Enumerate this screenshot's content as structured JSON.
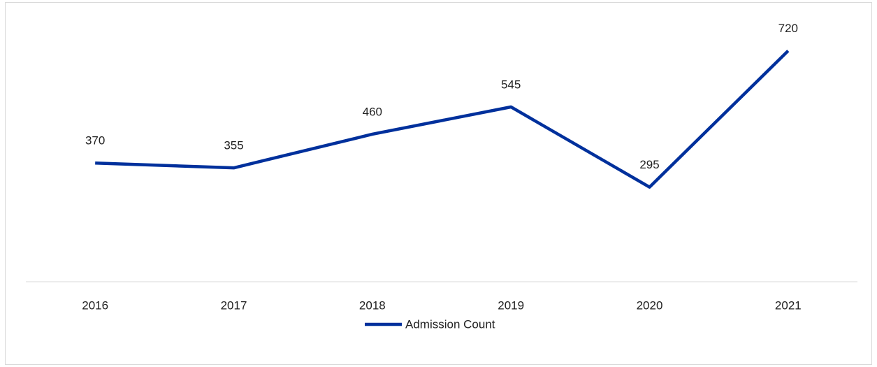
{
  "chart_data": {
    "type": "line",
    "categories": [
      "2016",
      "2017",
      "2018",
      "2019",
      "2020",
      "2021"
    ],
    "series": [
      {
        "name": "Admission Count",
        "color": "#00309c",
        "values": [
          370,
          355,
          460,
          545,
          295,
          720
        ]
      }
    ],
    "ylim": [
      0,
      800
    ],
    "legend": "bottom"
  }
}
